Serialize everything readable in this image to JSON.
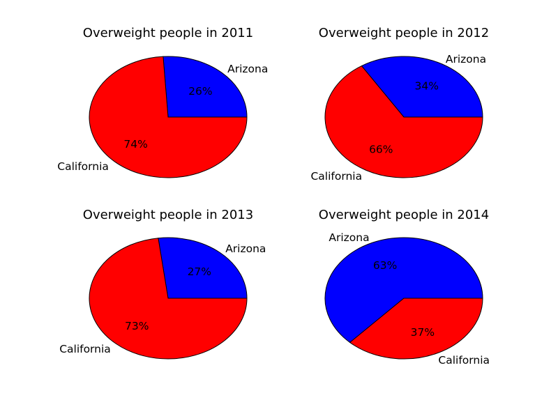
{
  "colors": {
    "Arizona": "#0000ff",
    "California": "#ff0000",
    "edge": "#000000",
    "background": "#ffffff"
  },
  "chart_data": [
    {
      "type": "pie",
      "title": "Overweight people in 2011",
      "labels": [
        "Arizona",
        "California"
      ],
      "values": [
        26,
        74
      ],
      "pct_labels": [
        "26%",
        "74%"
      ]
    },
    {
      "type": "pie",
      "title": "Overweight people in 2012",
      "labels": [
        "Arizona",
        "California"
      ],
      "values": [
        34,
        66
      ],
      "pct_labels": [
        "34%",
        "66%"
      ]
    },
    {
      "type": "pie",
      "title": "Overweight people in 2013",
      "labels": [
        "Arizona",
        "California"
      ],
      "values": [
        27,
        73
      ],
      "pct_labels": [
        "27%",
        "73%"
      ]
    },
    {
      "type": "pie",
      "title": "Overweight people in 2014",
      "labels": [
        "Arizona",
        "California"
      ],
      "values": [
        63,
        37
      ],
      "pct_labels": [
        "63%",
        "37%"
      ]
    }
  ]
}
